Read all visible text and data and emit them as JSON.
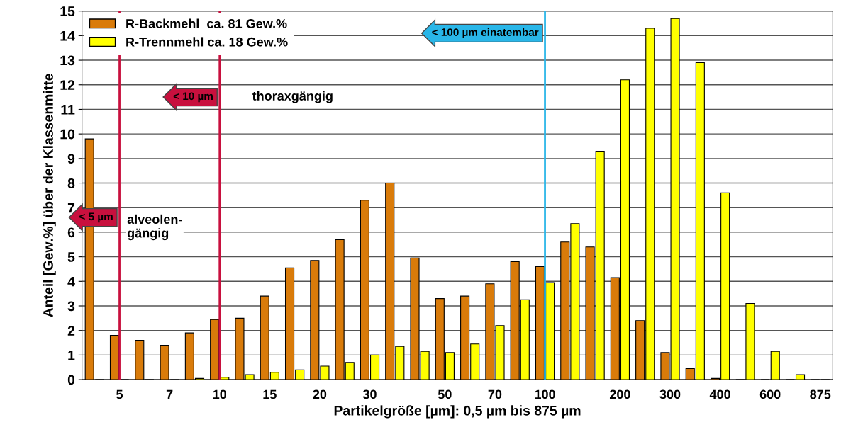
{
  "chart_data": {
    "type": "bar",
    "xlabel": "Partikelgröße [µm]: 0,5 µm bis 875 µm",
    "ylabel": "Anteil [Gew.%] über der Klassenmitte",
    "categories": [
      null,
      "5",
      null,
      "7",
      null,
      "10",
      null,
      "15",
      null,
      "20",
      null,
      "30",
      null,
      null,
      "50",
      null,
      "70",
      null,
      "100",
      null,
      null,
      "200",
      null,
      "300",
      null,
      "400",
      null,
      "600",
      null,
      "875"
    ],
    "series": [
      {
        "name": "R-Backmehl  ca. 81 Gew.%",
        "color": "#d97b0a",
        "values": [
          9.8,
          1.8,
          1.6,
          1.4,
          1.9,
          2.45,
          2.5,
          3.4,
          4.55,
          4.85,
          5.7,
          7.3,
          8.0,
          4.95,
          3.3,
          3.4,
          3.9,
          4.8,
          4.6,
          5.6,
          5.4,
          4.15,
          2.4,
          1.1,
          0.45,
          0.05,
          0,
          0,
          0,
          0
        ]
      },
      {
        "name": "R-Trennmehl ca. 18 Gew.%",
        "color": "#ffff00",
        "values": [
          0,
          0,
          0,
          0,
          0.05,
          0.1,
          0.2,
          0.3,
          0.4,
          0.55,
          0.7,
          1.0,
          1.35,
          1.15,
          1.1,
          1.45,
          2.2,
          3.25,
          3.95,
          6.35,
          9.3,
          12.2,
          14.3,
          14.7,
          12.9,
          7.6,
          3.1,
          1.15,
          0.2,
          0
        ]
      }
    ],
    "ylim": [
      0,
      15
    ],
    "yticks": [
      0,
      1,
      2,
      3,
      4,
      5,
      6,
      7,
      8,
      9,
      10,
      11,
      12,
      13,
      14,
      15
    ],
    "grid": "y",
    "legend": "top left",
    "ref_lines": [
      {
        "axis": "x",
        "value": "5",
        "label": "< 5 µm",
        "color": "#c8103e"
      },
      {
        "axis": "x",
        "value": "10",
        "label": "< 10 µm",
        "color": "#c8103e"
      },
      {
        "axis": "x",
        "value": "100",
        "label": "< 100 µm einatembar",
        "color": "#29b6e8"
      }
    ],
    "annotations": [
      "alveolen-\ngängig",
      "thoraxgängig"
    ]
  }
}
